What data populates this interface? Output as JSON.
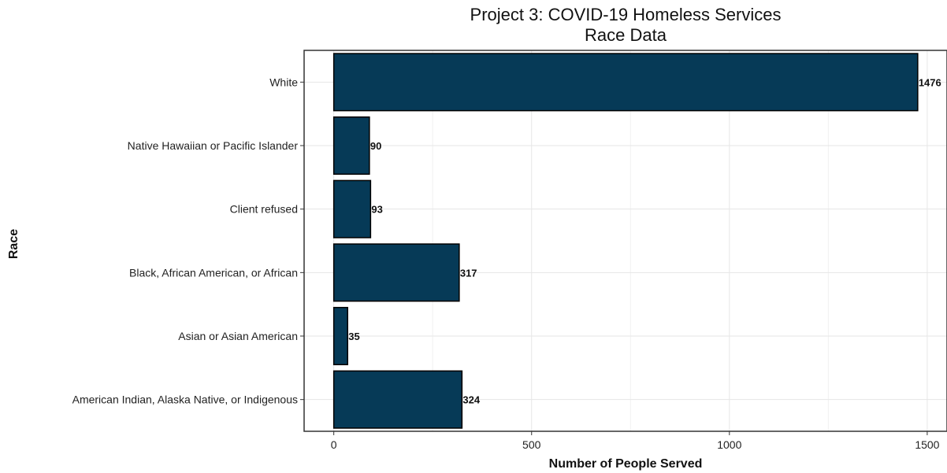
{
  "chart_data": {
    "type": "bar",
    "orientation": "horizontal",
    "title_lines": [
      "Project 3: COVID-19 Homeless Services",
      "Race Data"
    ],
    "xlabel": "Number of People Served",
    "ylabel": "Race",
    "categories": [
      "White",
      "Native Hawaiian or Pacific Islander",
      "Client refused",
      "Black, African American, or African",
      "Asian or Asian American",
      "American Indian, Alaska Native, or Indigenous"
    ],
    "values": [
      1476,
      90,
      93,
      317,
      35,
      324
    ],
    "xlim": [
      -75,
      1550
    ],
    "xticks": [
      0,
      500,
      1000,
      1500
    ],
    "xtick_labels": [
      "0",
      "500",
      "1000",
      "1500"
    ],
    "grid": true,
    "bar_color": "#063a57",
    "bar_outline": "#000000"
  }
}
